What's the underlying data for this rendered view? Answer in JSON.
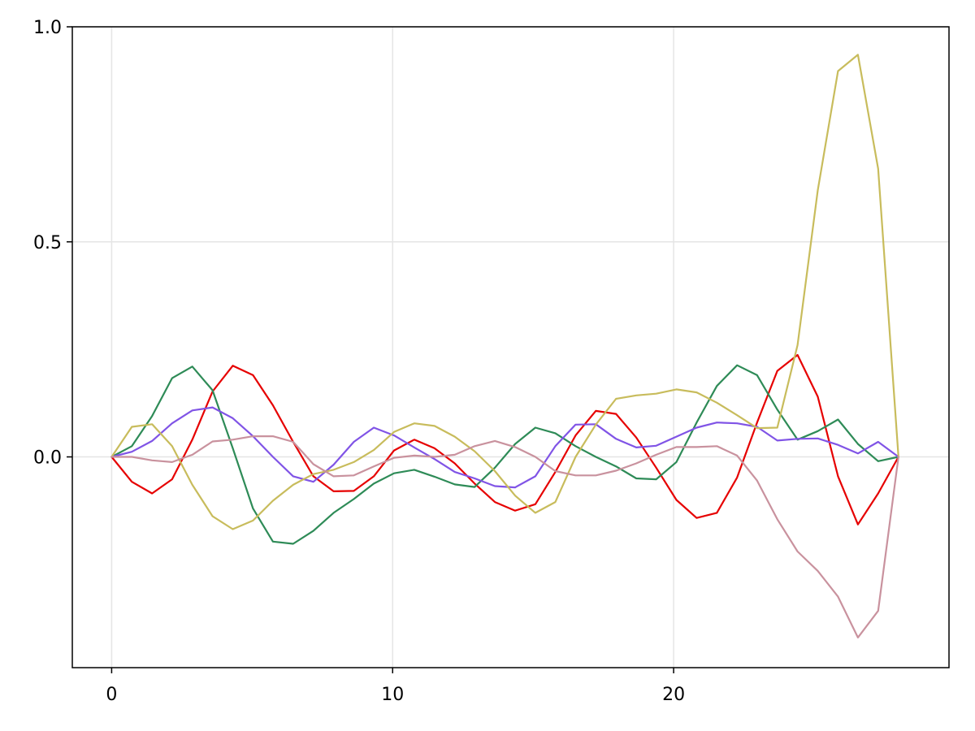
{
  "chart_data": {
    "type": "line",
    "title": "",
    "xlabel": "",
    "ylabel": "",
    "xlim": [
      -1.4,
      29.8
    ],
    "ylim": [
      -0.49,
      1.0
    ],
    "x_ticks": [
      0,
      10,
      20
    ],
    "x_tick_labels": [
      "0",
      "10",
      "20"
    ],
    "y_ticks": [
      0.0,
      0.5,
      1.0
    ],
    "y_tick_labels": [
      "0.0",
      "0.5",
      "1.0"
    ],
    "grid": true,
    "legend": "none",
    "x": [
      0,
      0.72,
      1.44,
      2.15,
      2.87,
      3.59,
      4.31,
      5.03,
      5.74,
      6.46,
      7.18,
      7.9,
      8.62,
      9.33,
      10.05,
      10.77,
      11.49,
      12.21,
      12.92,
      13.64,
      14.36,
      15.08,
      15.79,
      16.51,
      17.23,
      17.95,
      18.67,
      19.38,
      20.1,
      20.82,
      21.54,
      22.26,
      22.97,
      23.69,
      24.41,
      25.13,
      25.85,
      26.56,
      27.28,
      28.0
    ],
    "series": [
      {
        "color": "#e60000",
        "values": [
          0.0,
          -0.058,
          -0.085,
          -0.052,
          0.04,
          0.152,
          0.212,
          0.19,
          0.12,
          0.035,
          -0.045,
          -0.08,
          -0.079,
          -0.045,
          0.015,
          0.04,
          0.02,
          -0.015,
          -0.062,
          -0.105,
          -0.125,
          -0.11,
          -0.035,
          0.05,
          0.107,
          0.1,
          0.045,
          -0.025,
          -0.1,
          -0.142,
          -0.13,
          -0.048,
          0.08,
          0.2,
          0.237,
          0.14,
          -0.045,
          -0.157,
          -0.085,
          0.0
        ]
      },
      {
        "color": "#2e8b57",
        "values": [
          0.0,
          0.025,
          0.095,
          0.183,
          0.21,
          0.155,
          0.02,
          -0.12,
          -0.197,
          -0.202,
          -0.172,
          -0.13,
          -0.098,
          -0.062,
          -0.038,
          -0.03,
          -0.046,
          -0.064,
          -0.07,
          -0.025,
          0.03,
          0.068,
          0.055,
          0.025,
          0.0,
          -0.022,
          -0.05,
          -0.052,
          -0.012,
          0.08,
          0.165,
          0.213,
          0.19,
          0.11,
          0.04,
          0.06,
          0.087,
          0.03,
          -0.01,
          0.0
        ]
      },
      {
        "color": "#8054e6",
        "values": [
          0.0,
          0.012,
          0.037,
          0.078,
          0.108,
          0.115,
          0.09,
          0.048,
          0.0,
          -0.045,
          -0.058,
          -0.018,
          0.035,
          0.068,
          0.05,
          0.022,
          -0.005,
          -0.035,
          -0.05,
          -0.068,
          -0.071,
          -0.045,
          0.025,
          0.075,
          0.076,
          0.042,
          0.022,
          0.026,
          0.047,
          0.068,
          0.08,
          0.078,
          0.07,
          0.038,
          0.042,
          0.043,
          0.028,
          0.008,
          0.035,
          0.0
        ]
      },
      {
        "color": "#c8bc5c",
        "values": [
          0.0,
          0.07,
          0.076,
          0.025,
          -0.065,
          -0.138,
          -0.168,
          -0.148,
          -0.102,
          -0.065,
          -0.04,
          -0.03,
          -0.012,
          0.016,
          0.058,
          0.078,
          0.072,
          0.047,
          0.013,
          -0.033,
          -0.09,
          -0.13,
          -0.105,
          0.0,
          0.075,
          0.135,
          0.143,
          0.147,
          0.157,
          0.15,
          0.126,
          0.097,
          0.067,
          0.068,
          0.26,
          0.62,
          0.897,
          0.935,
          0.67,
          0.0
        ]
      },
      {
        "color": "#c9929e",
        "values": [
          0.0,
          0.0,
          -0.008,
          -0.012,
          0.005,
          0.036,
          0.04,
          0.048,
          0.048,
          0.035,
          -0.017,
          -0.045,
          -0.043,
          -0.022,
          -0.002,
          0.003,
          0.0,
          0.005,
          0.025,
          0.037,
          0.023,
          0.0,
          -0.033,
          -0.043,
          -0.043,
          -0.032,
          -0.015,
          0.005,
          0.023,
          0.023,
          0.025,
          0.003,
          -0.055,
          -0.145,
          -0.22,
          -0.265,
          -0.325,
          -0.42,
          -0.358,
          0.0
        ]
      }
    ]
  }
}
